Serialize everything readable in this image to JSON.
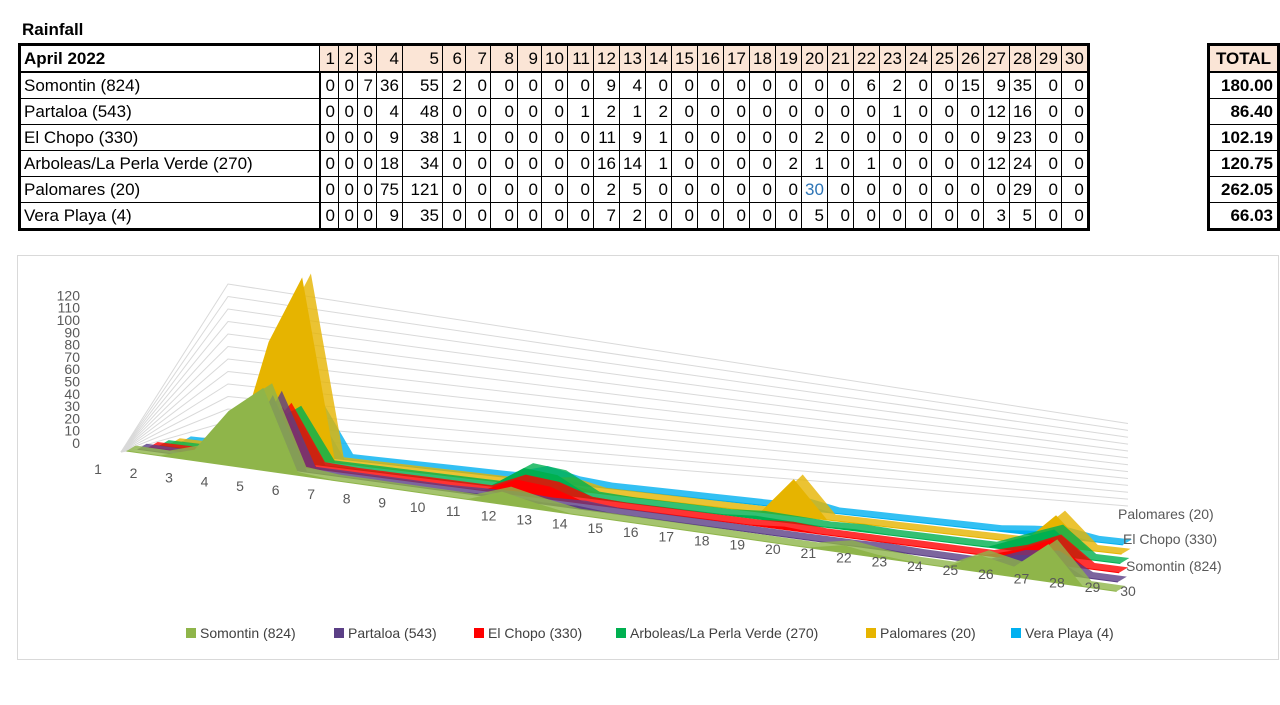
{
  "title": "Rainfall",
  "table": {
    "header_label": "April 2022",
    "total_label": "TOTAL",
    "days": [
      "1",
      "2",
      "3",
      "4",
      "5",
      "6",
      "7",
      "8",
      "9",
      "10",
      "11",
      "12",
      "13",
      "14",
      "15",
      "16",
      "17",
      "18",
      "19",
      "20",
      "21",
      "22",
      "23",
      "24",
      "25",
      "26",
      "27",
      "28",
      "29",
      "30"
    ],
    "rows": [
      {
        "station": "Somontin (824)",
        "values": [
          "0",
          "0",
          "7",
          "36",
          "55",
          "2",
          "0",
          "0",
          "0",
          "0",
          "0",
          "9",
          "4",
          "0",
          "0",
          "0",
          "0",
          "0",
          "0",
          "0",
          "0",
          "6",
          "2",
          "0",
          "0",
          "15",
          "9",
          "35",
          "0",
          "0"
        ],
        "total": "180.00"
      },
      {
        "station": "Partaloa (543)",
        "values": [
          "0",
          "0",
          "0",
          "4",
          "48",
          "0",
          "0",
          "0",
          "0",
          "0",
          "1",
          "2",
          "1",
          "2",
          "0",
          "0",
          "0",
          "0",
          "0",
          "0",
          "0",
          "0",
          "1",
          "0",
          "0",
          "0",
          "12",
          "16",
          "0",
          "0"
        ],
        "total": "86.40"
      },
      {
        "station": "El Chopo (330)",
        "values": [
          "0",
          "0",
          "0",
          "9",
          "38",
          "1",
          "0",
          "0",
          "0",
          "0",
          "0",
          "11",
          "9",
          "1",
          "0",
          "0",
          "0",
          "0",
          "0",
          "2",
          "0",
          "0",
          "0",
          "0",
          "0",
          "0",
          "9",
          "23",
          "0",
          "0"
        ],
        "total": "102.19"
      },
      {
        "station": "Arboleas/La Perla Verde (270)",
        "values": [
          "0",
          "0",
          "0",
          "18",
          "34",
          "0",
          "0",
          "0",
          "0",
          "0",
          "0",
          "16",
          "14",
          "1",
          "0",
          "0",
          "0",
          "0",
          "2",
          "1",
          "0",
          "1",
          "0",
          "0",
          "0",
          "0",
          "12",
          "24",
          "0",
          "0"
        ],
        "total": "120.75"
      },
      {
        "station": "Palomares (20)",
        "values": [
          "0",
          "0",
          "0",
          "75",
          "121",
          "0",
          "0",
          "0",
          "0",
          "0",
          "0",
          "2",
          "5",
          "0",
          "0",
          "0",
          "0",
          "0",
          "0",
          "30",
          "0",
          "0",
          "0",
          "0",
          "0",
          "0",
          "0",
          "29",
          "0",
          "0"
        ],
        "total": "262.05"
      },
      {
        "station": "Vera Playa (4)",
        "values": [
          "0",
          "0",
          "0",
          "9",
          "35",
          "0",
          "0",
          "0",
          "0",
          "0",
          "0",
          "7",
          "2",
          "0",
          "0",
          "0",
          "0",
          "0",
          "0",
          "5",
          "0",
          "0",
          "0",
          "0",
          "0",
          "0",
          "3",
          "5",
          "0",
          "0"
        ],
        "total": "66.03"
      }
    ]
  },
  "colors": {
    "highlight": "#2e75b6",
    "header_fill": "#fbe5d6"
  },
  "chart_data": {
    "type": "area",
    "style": "3d-area",
    "x": [
      1,
      2,
      3,
      4,
      5,
      6,
      7,
      8,
      9,
      10,
      11,
      12,
      13,
      14,
      15,
      16,
      17,
      18,
      19,
      20,
      21,
      22,
      23,
      24,
      25,
      26,
      27,
      28,
      29,
      30
    ],
    "y_ticks": [
      0,
      10,
      20,
      30,
      40,
      50,
      60,
      70,
      80,
      90,
      100,
      110,
      120
    ],
    "ylim": [
      0,
      120
    ],
    "depth_labels": [
      "Palomares (20)",
      "El Chopo (330)",
      "Somontin (824)"
    ],
    "legend_position": "bottom",
    "series": [
      {
        "name": "Somontin (824)",
        "color": "#8fb54a",
        "values": [
          0,
          0,
          7,
          36,
          55,
          2,
          0,
          0,
          0,
          0,
          0,
          9,
          4,
          0,
          0,
          0,
          0,
          0,
          0,
          0,
          0,
          6,
          2,
          0,
          0,
          15,
          9,
          35,
          0,
          0
        ]
      },
      {
        "name": "Partaloa (543)",
        "color": "#5b3f86",
        "values": [
          0,
          0,
          0,
          4,
          48,
          0,
          0,
          0,
          0,
          0,
          1,
          2,
          1,
          2,
          0,
          0,
          0,
          0,
          0,
          0,
          0,
          0,
          1,
          0,
          0,
          0,
          12,
          16,
          0,
          0
        ]
      },
      {
        "name": "El Chopo (330)",
        "color": "#ff0000",
        "values": [
          0,
          0,
          0,
          9,
          38,
          1,
          0,
          0,
          0,
          0,
          0,
          11,
          9,
          1,
          0,
          0,
          0,
          0,
          0,
          2,
          0,
          0,
          0,
          0,
          0,
          0,
          9,
          23,
          0,
          0
        ]
      },
      {
        "name": "Arboleas/La Perla Verde (270)",
        "color": "#00b050",
        "values": [
          0,
          0,
          0,
          18,
          34,
          0,
          0,
          0,
          0,
          0,
          0,
          16,
          14,
          1,
          0,
          0,
          0,
          0,
          2,
          1,
          0,
          1,
          0,
          0,
          0,
          0,
          12,
          24,
          0,
          0
        ]
      },
      {
        "name": "Palomares (20)",
        "color": "#e6b400",
        "values": [
          0,
          0,
          0,
          75,
          121,
          0,
          0,
          0,
          0,
          0,
          0,
          2,
          5,
          0,
          0,
          0,
          0,
          0,
          0,
          30,
          0,
          0,
          0,
          0,
          0,
          0,
          0,
          29,
          0,
          0
        ]
      },
      {
        "name": "Vera Playa (4)",
        "color": "#00b0f0",
        "values": [
          0,
          0,
          0,
          9,
          35,
          0,
          0,
          0,
          0,
          0,
          0,
          7,
          2,
          0,
          0,
          0,
          0,
          0,
          0,
          5,
          0,
          0,
          0,
          0,
          0,
          0,
          3,
          5,
          0,
          0
        ]
      }
    ]
  }
}
